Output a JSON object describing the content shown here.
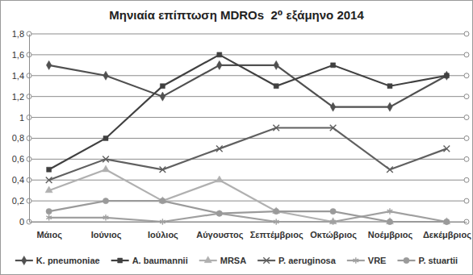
{
  "chart_data": {
    "type": "line",
    "title": "Μηνιαία επίπτωση MDROs  2⁰ εξάμηνο 2014",
    "categories": [
      "Μάιος",
      "Ιούνιος",
      "Ιούλιος",
      "Αύγουστος",
      "Σεπτέμβριος",
      "Οκτώβριος",
      "Νοέμβριος",
      "Δεκέμβριος"
    ],
    "series": [
      {
        "name": "K. pneumoniae",
        "color": "#505050",
        "marker": "diamond",
        "values": [
          1.5,
          1.4,
          1.2,
          1.5,
          1.5,
          1.1,
          1.1,
          1.4
        ]
      },
      {
        "name": "A. baumannii",
        "color": "#404040",
        "marker": "square",
        "values": [
          0.5,
          0.8,
          1.3,
          1.6,
          1.3,
          1.5,
          1.3,
          1.4
        ]
      },
      {
        "name": "MRSA",
        "color": "#b0b0b0",
        "marker": "triangle",
        "values": [
          0.3,
          0.5,
          0.2,
          0.4,
          0.1,
          0,
          0,
          0
        ]
      },
      {
        "name": "P. aeruginosa",
        "color": "#606060",
        "marker": "x",
        "values": [
          0.4,
          0.6,
          0.5,
          0.7,
          0.9,
          0.9,
          0.5,
          0.7
        ]
      },
      {
        "name": "VRE",
        "color": "#a0a0a0",
        "marker": "asterisk",
        "values": [
          0.04,
          0.04,
          0,
          0.08,
          0,
          0,
          0.1,
          0
        ]
      },
      {
        "name": "P. stuartii",
        "color": "#9a9a9a",
        "marker": "circle",
        "values": [
          0.1,
          0.2,
          0.2,
          0.08,
          0.1,
          0.1,
          0,
          0
        ]
      }
    ],
    "ylim": [
      0,
      1.8
    ],
    "yticks": [
      0,
      {
        "value": 0.2,
        "label": "0,2"
      },
      {
        "value": 0.4,
        "label": "0,4"
      },
      {
        "value": 0.6,
        "label": "0,6"
      },
      {
        "value": 0.8,
        "label": "0,8"
      },
      1,
      {
        "value": 1.2,
        "label": "1,2"
      },
      {
        "value": 1.4,
        "label": "1,4"
      },
      {
        "value": 1.6,
        "label": "1,6"
      },
      {
        "value": 1.8,
        "label": "1,8"
      }
    ],
    "grid": true,
    "legend": "bottom"
  }
}
